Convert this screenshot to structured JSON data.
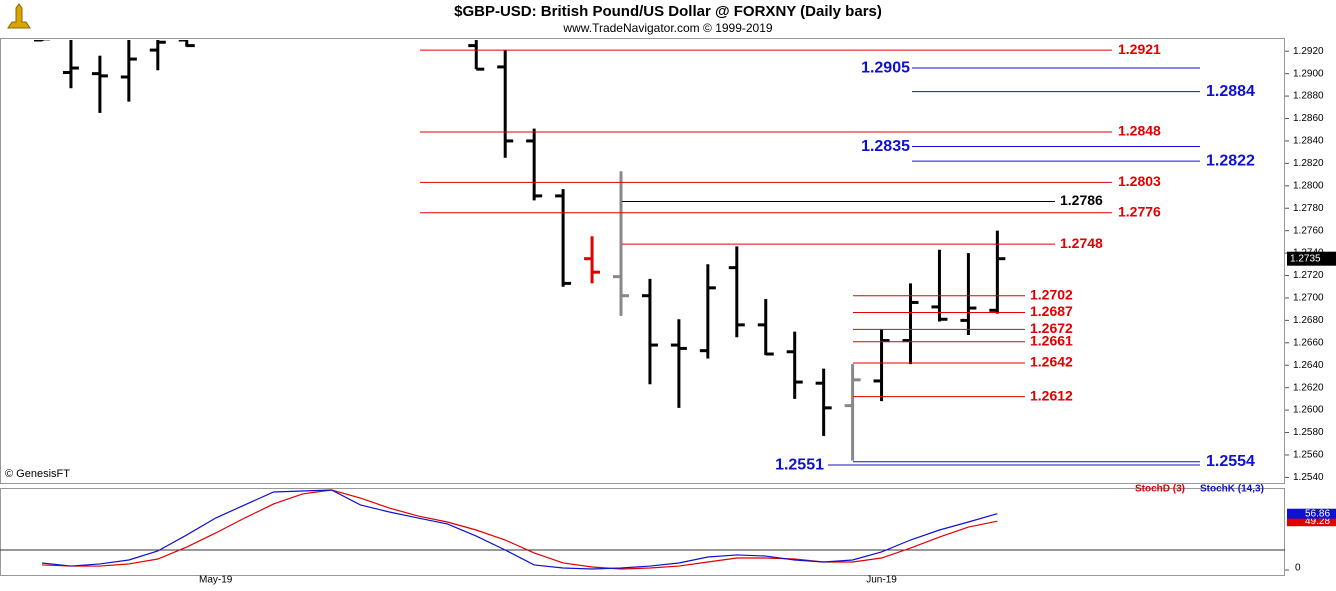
{
  "chart_data": [
    {
      "type": "ohlc",
      "title": "$GBP-USD:  British Pound/US Dollar @ FORXNY  (Daily bars)",
      "subtitle": "www.TradeNavigator.com © 1999-2019",
      "source": "© GenesisFT",
      "categories": [
        null,
        null,
        null,
        null,
        null,
        null,
        "May-19",
        null,
        null,
        null,
        null,
        null,
        null,
        null,
        null,
        null,
        null,
        null,
        null,
        null,
        null,
        null,
        null,
        null,
        null,
        null,
        null,
        null,
        null,
        "Jun-19",
        null,
        null,
        null,
        null
      ],
      "open": [
        1.293,
        1.2901,
        1.29,
        1.2897,
        1.2921,
        1.293,
        null,
        null,
        null,
        null,
        null,
        null,
        null,
        null,
        null,
        1.2925,
        1.2906,
        1.284,
        1.2791,
        1.2735,
        1.2719,
        1.2702,
        1.2658,
        1.2653,
        1.2727,
        1.2676,
        1.2652,
        1.2624,
        1.2604,
        1.2626,
        1.2662,
        1.2692,
        1.268,
        1.2689
      ],
      "high": [
        1.2935,
        1.2935,
        1.2916,
        1.2935,
        1.2935,
        1.2935,
        null,
        null,
        null,
        null,
        null,
        null,
        null,
        null,
        null,
        1.2935,
        1.2921,
        1.2851,
        1.2797,
        1.2755,
        1.2813,
        1.2717,
        1.2681,
        1.273,
        1.2746,
        1.2699,
        1.267,
        1.2637,
        1.2641,
        1.2672,
        1.2713,
        1.2743,
        1.274,
        1.276
      ],
      "low": [
        1.2929,
        1.2887,
        1.2865,
        1.2875,
        1.2903,
        1.2924,
        null,
        null,
        null,
        null,
        null,
        null,
        null,
        null,
        null,
        1.2904,
        1.2825,
        1.2787,
        1.271,
        1.2713,
        1.2684,
        1.2623,
        1.2602,
        1.2646,
        1.2665,
        1.2649,
        1.261,
        1.2577,
        1.2555,
        1.2608,
        1.2641,
        1.2679,
        1.2667,
        1.2686
      ],
      "close": [
        1.2931,
        1.2905,
        1.2898,
        1.2913,
        1.2928,
        1.2925,
        null,
        null,
        null,
        null,
        null,
        null,
        null,
        null,
        null,
        1.2904,
        1.284,
        1.2791,
        1.2713,
        1.2723,
        1.2702,
        1.2658,
        1.2655,
        1.2709,
        1.2676,
        1.265,
        1.2625,
        1.2602,
        1.2627,
        1.2662,
        1.2696,
        1.2681,
        1.2691,
        1.2735
      ],
      "bar_colors": [
        "#000",
        "#000",
        "#000",
        "#000",
        "#000",
        "#000",
        null,
        null,
        null,
        null,
        null,
        null,
        null,
        null,
        null,
        "#000",
        "#000",
        "#000",
        "#000",
        "#e00000",
        "#888",
        "#000",
        "#000",
        "#000",
        "#000",
        "#000",
        "#000",
        "#000",
        "#888",
        "#000",
        "#000",
        "#000",
        "#000",
        "#000"
      ],
      "ylim": [
        1.2535,
        1.293
      ],
      "yticks": [
        {
          "value": 1.254,
          "label": "1.2540"
        },
        {
          "value": 1.256,
          "label": "1.2560"
        },
        {
          "value": 1.258,
          "label": "1.2580"
        },
        {
          "value": 1.26,
          "label": "1.2600"
        },
        {
          "value": 1.262,
          "label": "1.2620"
        },
        {
          "value": 1.264,
          "label": "1.2640"
        },
        {
          "value": 1.266,
          "label": "1.2660"
        },
        {
          "value": 1.268,
          "label": "1.2680"
        },
        {
          "value": 1.27,
          "label": "1.2700"
        },
        {
          "value": 1.272,
          "label": "1.2720"
        },
        {
          "value": 1.274,
          "label": "1.2740"
        },
        {
          "value": 1.276,
          "label": "1.2760"
        },
        {
          "value": 1.278,
          "label": "1.2780"
        },
        {
          "value": 1.28,
          "label": "1.2800"
        },
        {
          "value": 1.282,
          "label": "1.2820"
        },
        {
          "value": 1.284,
          "label": "1.2840"
        },
        {
          "value": 1.286,
          "label": "1.2860"
        },
        {
          "value": 1.288,
          "label": "1.2880"
        },
        {
          "value": 1.29,
          "label": "1.2900"
        },
        {
          "value": 1.292,
          "label": "1.2920"
        }
      ],
      "levels": [
        {
          "value": 1.2921,
          "color": "#e00000"
        },
        {
          "value": 1.2905,
          "color": "#1010d0"
        },
        {
          "value": 1.2884,
          "color": "#1010d0"
        },
        {
          "value": 1.2848,
          "color": "#e00000"
        },
        {
          "value": 1.2835,
          "color": "#1010d0"
        },
        {
          "value": 1.2822,
          "color": "#1010d0"
        },
        {
          "value": 1.2803,
          "color": "#e00000"
        },
        {
          "value": 1.2786,
          "color": "#000000"
        },
        {
          "value": 1.2776,
          "color": "#e00000"
        },
        {
          "value": 1.2748,
          "color": "#e00000"
        },
        {
          "value": 1.2702,
          "color": "#e00000"
        },
        {
          "value": 1.2687,
          "color": "#e00000"
        },
        {
          "value": 1.2672,
          "color": "#e00000"
        },
        {
          "value": 1.2661,
          "color": "#e00000"
        },
        {
          "value": 1.2642,
          "color": "#e00000"
        },
        {
          "value": 1.2612,
          "color": "#e00000"
        },
        {
          "value": 1.2551,
          "color": "#1010d0"
        },
        {
          "value": 1.2554,
          "color": "#1010d0"
        }
      ]
    },
    {
      "type": "line",
      "ylim": [
        0,
        100
      ],
      "yticks": [
        0
      ],
      "series": [
        {
          "name": "StochD (3)",
          "color": "#e00000",
          "values": [
            5.1,
            4.0,
            4.0,
            6.1,
            11.1,
            23.2,
            37.4,
            52.5,
            66.7,
            76.8,
            80.8,
            72.7,
            62.6,
            54.5,
            48.5,
            40.4,
            30.3,
            17.2,
            7.1,
            3.0,
            1.0,
            2.0,
            4.0,
            8.1,
            12.1,
            12.1,
            11.1,
            8.1,
            8.1,
            12.1,
            22.2,
            33.3,
            43.4,
            49.28
          ]
        },
        {
          "name": "StochK (14,3)",
          "color": "#1010d0",
          "values": [
            7.1,
            4.0,
            6.1,
            10.1,
            19.2,
            35.4,
            52.5,
            65.7,
            78.8,
            79.8,
            80.8,
            65.7,
            58.6,
            52.5,
            46.5,
            34.3,
            20.2,
            5.1,
            2.0,
            1.0,
            2.0,
            4.0,
            7.1,
            13.1,
            15.2,
            14.1,
            10.1,
            8.1,
            10.1,
            18.2,
            30.3,
            40.4,
            48.5,
            56.86
          ]
        }
      ]
    }
  ]
}
